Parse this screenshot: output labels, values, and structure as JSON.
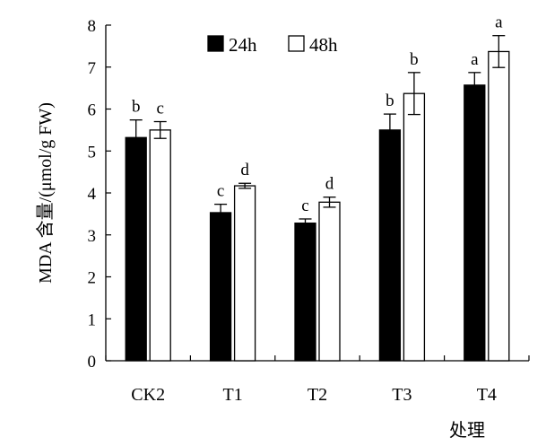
{
  "chart_data": {
    "type": "bar",
    "categories": [
      "CK2",
      "T1",
      "T2",
      "T3",
      "T4"
    ],
    "series": [
      {
        "name": "24h",
        "color": "#000000",
        "values": [
          5.32,
          3.53,
          3.28,
          5.5,
          6.57
        ],
        "errors": [
          0.42,
          0.2,
          0.1,
          0.38,
          0.3
        ],
        "labels": [
          "b",
          "c",
          "c",
          "b",
          "a"
        ]
      },
      {
        "name": "48h",
        "color": "#ffffff",
        "values": [
          5.5,
          4.17,
          3.78,
          6.37,
          7.37
        ],
        "errors": [
          0.2,
          0.06,
          0.12,
          0.5,
          0.38
        ],
        "labels": [
          "c",
          "d",
          "d",
          "b",
          "a"
        ]
      }
    ],
    "ylabel": "MDA 含量/(μmol/g FW)",
    "xlabel": "处理",
    "ylim": [
      0,
      8
    ],
    "yticks": [
      0,
      1,
      2,
      3,
      4,
      5,
      6,
      7,
      8
    ],
    "grid": false,
    "legend": "top"
  }
}
